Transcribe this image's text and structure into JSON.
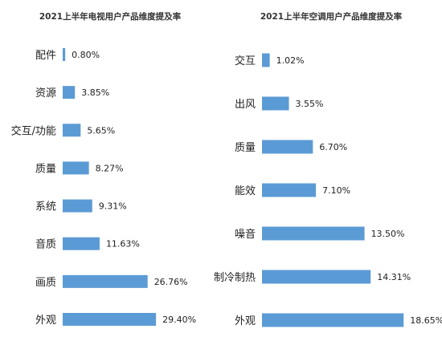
{
  "chart_data": [
    {
      "type": "bar",
      "orientation": "horizontal",
      "title": "2021上半年电视用户产品维度提及率",
      "categories": [
        "配件",
        "资源",
        "交互/功能",
        "质量",
        "系统",
        "音质",
        "画质",
        "外观"
      ],
      "values": [
        0.8,
        3.85,
        5.65,
        8.27,
        9.31,
        11.63,
        26.76,
        29.4
      ],
      "value_labels": [
        "0.80%",
        "3.85%",
        "5.65%",
        "8.27%",
        "9.31%",
        "11.63%",
        "26.76%",
        "29.40%"
      ],
      "unit": "%",
      "color": "#5B9BD5",
      "grid": false,
      "legend": "none"
    },
    {
      "type": "bar",
      "orientation": "horizontal",
      "title": "2021上半年空调用户产品维度提及率",
      "categories": [
        "交互",
        "出风",
        "质量",
        "能效",
        "噪音",
        "制冷制热",
        "外观"
      ],
      "values": [
        1.02,
        3.55,
        6.7,
        7.1,
        13.5,
        14.31,
        18.65
      ],
      "value_labels": [
        "1.02%",
        "3.55%",
        "6.70%",
        "7.10%",
        "13.50%",
        "14.31%",
        "18.65%"
      ],
      "unit": "%",
      "color": "#5B9BD5",
      "grid": false,
      "legend": "none"
    }
  ]
}
